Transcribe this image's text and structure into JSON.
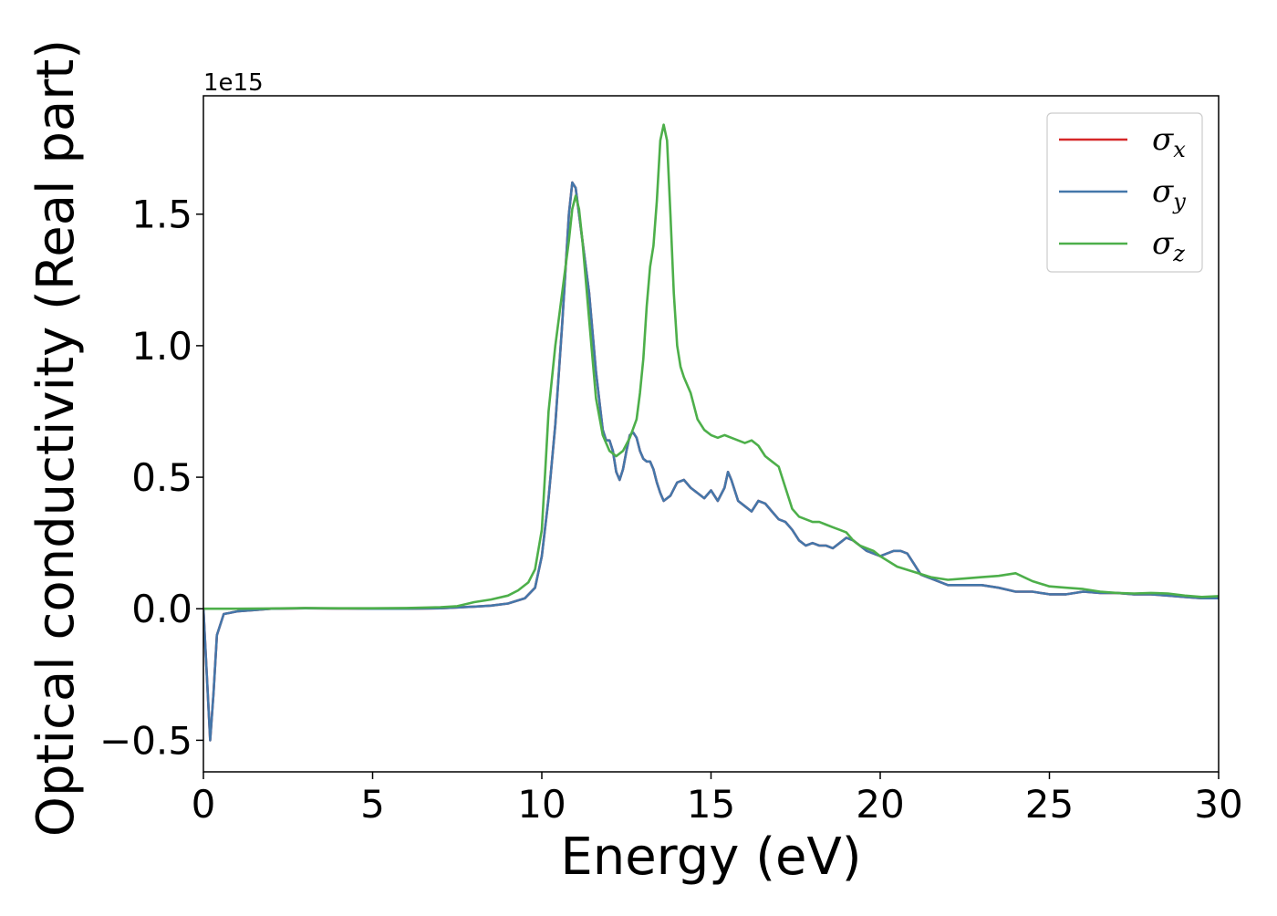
{
  "chart_data": {
    "type": "line",
    "title": "",
    "xlabel": "Energy (eV)",
    "ylabel": "Optical conductivity (Real part)",
    "y_offset_label": "1e15",
    "y_scale": 1000000000000000.0,
    "xlim": [
      0,
      30
    ],
    "ylim": [
      -0.62,
      1.95
    ],
    "x_ticks": [
      0,
      5,
      10,
      15,
      20,
      25,
      30
    ],
    "x_tick_labels": [
      "0",
      "5",
      "10",
      "15",
      "20",
      "25",
      "30"
    ],
    "y_ticks": [
      -0.5,
      0.0,
      0.5,
      1.0,
      1.5
    ],
    "y_tick_labels": [
      "−0.5",
      "0.0",
      "0.5",
      "1.0",
      "1.5"
    ],
    "grid": false,
    "legend_position": "top-right",
    "series": [
      {
        "name": "σ",
        "subscript": "x",
        "color": "#d62728",
        "x": [
          0,
          0.1,
          0.2,
          0.3,
          0.4,
          0.6,
          0.8,
          1.0,
          1.5,
          2.0,
          3.0,
          4.0,
          5.0,
          6.0,
          7.0,
          8.0,
          8.5,
          9.0,
          9.5,
          9.8,
          10.0,
          10.2,
          10.4,
          10.6,
          10.8,
          10.9,
          11.0,
          11.1,
          11.2,
          11.4,
          11.6,
          11.8,
          11.9,
          12.0,
          12.1,
          12.2,
          12.3,
          12.4,
          12.5,
          12.6,
          12.7,
          12.8,
          12.9,
          13.0,
          13.1,
          13.2,
          13.3,
          13.4,
          13.5,
          13.6,
          13.8,
          14.0,
          14.2,
          14.4,
          14.6,
          14.8,
          15.0,
          15.2,
          15.4,
          15.5,
          15.6,
          15.8,
          16.0,
          16.2,
          16.4,
          16.6,
          16.8,
          17.0,
          17.2,
          17.4,
          17.6,
          17.8,
          18.0,
          18.2,
          18.4,
          18.6,
          18.8,
          19.0,
          19.2,
          19.4,
          19.6,
          19.8,
          20.0,
          20.2,
          20.4,
          20.6,
          20.8,
          21.0,
          21.2,
          21.4,
          21.6,
          22.0,
          22.5,
          23.0,
          23.5,
          24.0,
          24.5,
          25.0,
          25.5,
          26.0,
          26.5,
          27.0,
          27.5,
          28.0,
          28.5,
          29.0,
          29.5,
          30.0
        ],
        "y": [
          0.0,
          -0.25,
          -0.5,
          -0.32,
          -0.1,
          -0.02,
          -0.015,
          -0.01,
          -0.005,
          0.0,
          0.002,
          0.001,
          0.0,
          0.0,
          0.002,
          0.008,
          0.012,
          0.02,
          0.04,
          0.08,
          0.2,
          0.42,
          0.7,
          1.08,
          1.5,
          1.62,
          1.6,
          1.5,
          1.4,
          1.2,
          0.9,
          0.68,
          0.64,
          0.64,
          0.6,
          0.52,
          0.49,
          0.53,
          0.6,
          0.66,
          0.67,
          0.65,
          0.6,
          0.57,
          0.56,
          0.56,
          0.53,
          0.48,
          0.44,
          0.41,
          0.43,
          0.48,
          0.49,
          0.46,
          0.44,
          0.42,
          0.45,
          0.41,
          0.46,
          0.52,
          0.49,
          0.41,
          0.39,
          0.37,
          0.41,
          0.4,
          0.37,
          0.34,
          0.33,
          0.3,
          0.26,
          0.24,
          0.25,
          0.24,
          0.24,
          0.23,
          0.25,
          0.27,
          0.26,
          0.24,
          0.22,
          0.21,
          0.2,
          0.21,
          0.22,
          0.22,
          0.21,
          0.17,
          0.13,
          0.12,
          0.11,
          0.09,
          0.09,
          0.09,
          0.08,
          0.065,
          0.065,
          0.055,
          0.055,
          0.065,
          0.06,
          0.06,
          0.055,
          0.055,
          0.05,
          0.045,
          0.04,
          0.04
        ]
      },
      {
        "name": "σ",
        "subscript": "y",
        "color": "#4477aa",
        "x": [
          0,
          0.1,
          0.2,
          0.3,
          0.4,
          0.6,
          0.8,
          1.0,
          1.5,
          2.0,
          3.0,
          4.0,
          5.0,
          6.0,
          7.0,
          8.0,
          8.5,
          9.0,
          9.5,
          9.8,
          10.0,
          10.2,
          10.4,
          10.6,
          10.8,
          10.9,
          11.0,
          11.1,
          11.2,
          11.4,
          11.6,
          11.8,
          11.9,
          12.0,
          12.1,
          12.2,
          12.3,
          12.4,
          12.5,
          12.6,
          12.7,
          12.8,
          12.9,
          13.0,
          13.1,
          13.2,
          13.3,
          13.4,
          13.5,
          13.6,
          13.8,
          14.0,
          14.2,
          14.4,
          14.6,
          14.8,
          15.0,
          15.2,
          15.4,
          15.5,
          15.6,
          15.8,
          16.0,
          16.2,
          16.4,
          16.6,
          16.8,
          17.0,
          17.2,
          17.4,
          17.6,
          17.8,
          18.0,
          18.2,
          18.4,
          18.6,
          18.8,
          19.0,
          19.2,
          19.4,
          19.6,
          19.8,
          20.0,
          20.2,
          20.4,
          20.6,
          20.8,
          21.0,
          21.2,
          21.4,
          21.6,
          22.0,
          22.5,
          23.0,
          23.5,
          24.0,
          24.5,
          25.0,
          25.5,
          26.0,
          26.5,
          27.0,
          27.5,
          28.0,
          28.5,
          29.0,
          29.5,
          30.0
        ],
        "y": [
          0.0,
          -0.25,
          -0.5,
          -0.32,
          -0.1,
          -0.02,
          -0.015,
          -0.01,
          -0.005,
          0.0,
          0.002,
          0.001,
          0.0,
          0.0,
          0.002,
          0.008,
          0.012,
          0.02,
          0.04,
          0.08,
          0.2,
          0.42,
          0.7,
          1.08,
          1.5,
          1.62,
          1.6,
          1.5,
          1.4,
          1.2,
          0.9,
          0.68,
          0.64,
          0.64,
          0.6,
          0.52,
          0.49,
          0.53,
          0.6,
          0.66,
          0.67,
          0.65,
          0.6,
          0.57,
          0.56,
          0.56,
          0.53,
          0.48,
          0.44,
          0.41,
          0.43,
          0.48,
          0.49,
          0.46,
          0.44,
          0.42,
          0.45,
          0.41,
          0.46,
          0.52,
          0.49,
          0.41,
          0.39,
          0.37,
          0.41,
          0.4,
          0.37,
          0.34,
          0.33,
          0.3,
          0.26,
          0.24,
          0.25,
          0.24,
          0.24,
          0.23,
          0.25,
          0.27,
          0.26,
          0.24,
          0.22,
          0.21,
          0.2,
          0.21,
          0.22,
          0.22,
          0.21,
          0.17,
          0.13,
          0.12,
          0.11,
          0.09,
          0.09,
          0.09,
          0.08,
          0.065,
          0.065,
          0.055,
          0.055,
          0.065,
          0.06,
          0.06,
          0.055,
          0.055,
          0.05,
          0.045,
          0.04,
          0.04
        ]
      },
      {
        "name": "σ",
        "subscript": "z",
        "color": "#4daf4a",
        "x": [
          0,
          0.5,
          1.0,
          2.0,
          3.0,
          4.0,
          5.0,
          6.0,
          7.0,
          7.5,
          8.0,
          8.5,
          9.0,
          9.3,
          9.6,
          9.8,
          10.0,
          10.1,
          10.2,
          10.4,
          10.6,
          10.8,
          10.9,
          11.0,
          11.1,
          11.2,
          11.4,
          11.6,
          11.8,
          12.0,
          12.2,
          12.4,
          12.6,
          12.8,
          12.9,
          13.0,
          13.1,
          13.2,
          13.3,
          13.4,
          13.5,
          13.6,
          13.7,
          13.8,
          13.9,
          14.0,
          14.1,
          14.2,
          14.4,
          14.6,
          14.8,
          15.0,
          15.2,
          15.4,
          15.6,
          15.8,
          16.0,
          16.2,
          16.4,
          16.6,
          16.8,
          17.0,
          17.2,
          17.4,
          17.6,
          17.8,
          18.0,
          18.2,
          18.4,
          18.6,
          18.8,
          19.0,
          19.2,
          19.4,
          19.6,
          19.8,
          20.0,
          20.5,
          21.0,
          21.5,
          22.0,
          22.5,
          23.0,
          23.5,
          24.0,
          24.5,
          25.0,
          25.5,
          26.0,
          26.5,
          27.0,
          27.5,
          28.0,
          28.5,
          29.0,
          29.5,
          30.0
        ],
        "y": [
          0.0,
          0.0,
          0.0,
          0.001,
          0.003,
          0.002,
          0.002,
          0.003,
          0.006,
          0.01,
          0.025,
          0.035,
          0.05,
          0.07,
          0.1,
          0.15,
          0.3,
          0.52,
          0.75,
          1.0,
          1.2,
          1.4,
          1.52,
          1.57,
          1.52,
          1.4,
          1.1,
          0.8,
          0.66,
          0.6,
          0.58,
          0.6,
          0.65,
          0.72,
          0.82,
          0.95,
          1.15,
          1.3,
          1.38,
          1.55,
          1.78,
          1.84,
          1.78,
          1.5,
          1.2,
          1.0,
          0.92,
          0.88,
          0.82,
          0.72,
          0.68,
          0.66,
          0.65,
          0.66,
          0.65,
          0.64,
          0.63,
          0.64,
          0.62,
          0.58,
          0.56,
          0.54,
          0.46,
          0.38,
          0.35,
          0.34,
          0.33,
          0.33,
          0.32,
          0.31,
          0.3,
          0.29,
          0.26,
          0.24,
          0.23,
          0.22,
          0.2,
          0.16,
          0.14,
          0.12,
          0.11,
          0.115,
          0.12,
          0.125,
          0.135,
          0.105,
          0.085,
          0.08,
          0.075,
          0.065,
          0.06,
          0.058,
          0.06,
          0.058,
          0.05,
          0.045,
          0.048
        ]
      }
    ]
  }
}
